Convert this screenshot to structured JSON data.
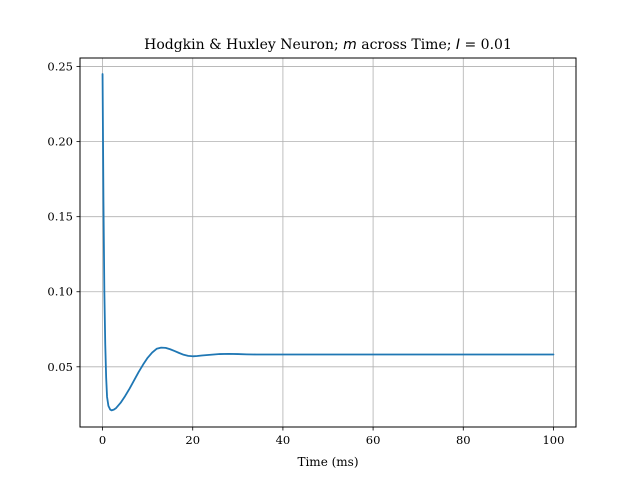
{
  "chart_data": {
    "type": "line",
    "title": "Hodgkin & Huxley Neuron; m across Time; I = 0.01",
    "title_parts": {
      "prefix": "Hodgkin & Huxley Neuron; ",
      "var_m": "m",
      "middle": " across Time; ",
      "var_i": "I",
      "suffix": " = 0.01"
    },
    "xlabel": "Time (ms)",
    "ylabel": "",
    "xlim": [
      -5,
      105
    ],
    "ylim": [
      0.0099,
      0.2557
    ],
    "xticks": [
      0,
      20,
      40,
      60,
      80,
      100
    ],
    "xtick_labels": [
      "0",
      "20",
      "40",
      "60",
      "80",
      "100"
    ],
    "yticks": [
      0.05,
      0.1,
      0.15,
      0.2,
      0.25
    ],
    "ytick_labels": [
      "0.05",
      "0.10",
      "0.15",
      "0.20",
      "0.25"
    ],
    "grid": true,
    "series": [
      {
        "color": "#1f77b4",
        "x": [
          0,
          0.2,
          0.4,
          0.6,
          0.8,
          1.0,
          1.3,
          1.7,
          2.0,
          2.5,
          3.0,
          4.0,
          5.0,
          6.0,
          7.0,
          8.0,
          9.0,
          10.0,
          11.0,
          12.0,
          13.0,
          14.0,
          15.0,
          16.0,
          17.0,
          18.0,
          19.0,
          20.0,
          21.0,
          22.0,
          24.0,
          26.0,
          28.0,
          30.0,
          32.0,
          34.0,
          36.0,
          40.0,
          45.0,
          50.0,
          60.0,
          70.0,
          80.0,
          90.0,
          100.0
        ],
        "y": [
          0.245,
          0.16,
          0.1,
          0.065,
          0.043,
          0.03,
          0.024,
          0.0215,
          0.021,
          0.0215,
          0.0225,
          0.026,
          0.0305,
          0.0355,
          0.041,
          0.0465,
          0.0515,
          0.056,
          0.0595,
          0.062,
          0.0628,
          0.0626,
          0.0617,
          0.0605,
          0.0592,
          0.058,
          0.0573,
          0.057,
          0.0572,
          0.0575,
          0.058,
          0.0585,
          0.0586,
          0.0585,
          0.0583,
          0.0582,
          0.0582,
          0.0582,
          0.0582,
          0.0582,
          0.0582,
          0.0582,
          0.0582,
          0.0582,
          0.0582
        ]
      }
    ]
  }
}
